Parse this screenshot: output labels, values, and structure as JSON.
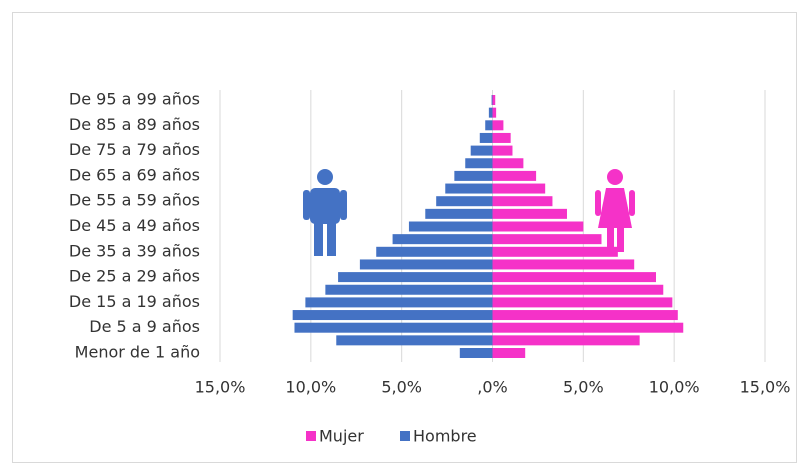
{
  "chart_data": {
    "type": "bar",
    "orientation": "horizontal",
    "stacked": "overlap",
    "categories": [
      "De 95 a 99 años",
      null,
      "De 85 a 89 años",
      null,
      "De 75 a 79 años",
      null,
      "De 65 a 69 años",
      null,
      "De 55 a 59 años",
      null,
      "De 45 a 49 años",
      null,
      "De 35 a 39 años",
      null,
      "De 25 a 29 años",
      null,
      "De 15 a 19 años",
      null,
      "De 5 a 9 años",
      null,
      "Menor de 1 año"
    ],
    "series": [
      {
        "name": "Mujer",
        "color": "#f532c8",
        "values": [
          0.15,
          0.2,
          0.6,
          1.0,
          1.1,
          1.7,
          2.4,
          2.9,
          3.3,
          4.1,
          5.0,
          6.0,
          6.9,
          7.8,
          9.0,
          9.4,
          9.9,
          10.2,
          10.5,
          8.1,
          1.8
        ]
      },
      {
        "name": "Hombre",
        "color": "#4472c4",
        "values": [
          -0.05,
          -0.2,
          -0.4,
          -0.7,
          -1.2,
          -1.5,
          -2.1,
          -2.6,
          -3.1,
          -3.7,
          -4.6,
          -5.5,
          -6.4,
          -7.3,
          -8.5,
          -9.2,
          -10.3,
          -11.0,
          -10.9,
          -8.6,
          -1.8
        ]
      }
    ],
    "xlim": [
      -15,
      15
    ],
    "xticks": [
      {
        "value": -15,
        "label": "15,0%"
      },
      {
        "value": -10,
        "label": "10,0%"
      },
      {
        "value": -5,
        "label": "5,0%"
      },
      {
        "value": 0,
        "label": ",0%"
      },
      {
        "value": 5,
        "label": "5,0%"
      },
      {
        "value": 10,
        "label": "10,0%"
      },
      {
        "value": 15,
        "label": "15,0%"
      }
    ],
    "grid": true,
    "legend": "bottom"
  }
}
